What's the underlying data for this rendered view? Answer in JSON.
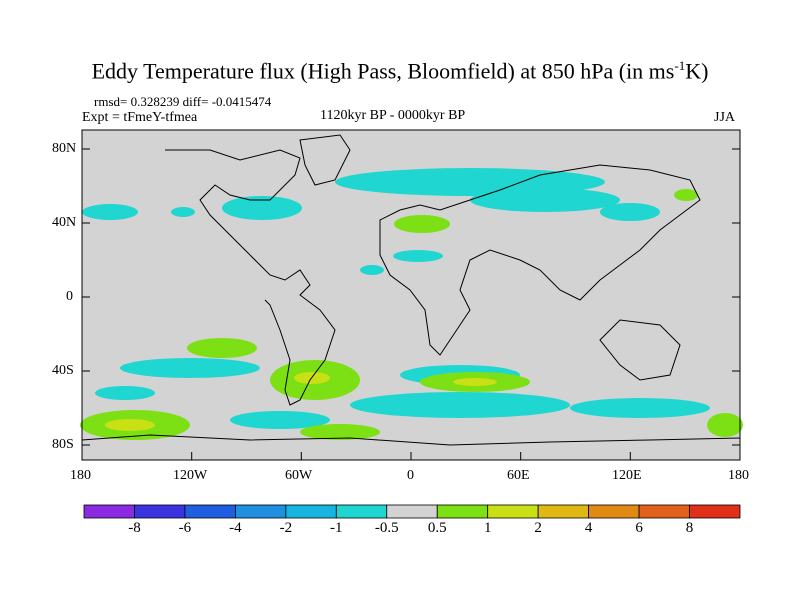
{
  "title": {
    "text": "Eddy Temperature flux (High Pass, Bloomfield) at 850 hPa (in ms",
    "sup": "-1",
    "tail": "K)"
  },
  "stats": {
    "rmsd_diff": "rmsd= 0.328239 diff= -0.0415474",
    "expt": "Expt = tFmeY-tfmea",
    "period": "1120kyr BP - 0000kyr BP",
    "season": "JJA"
  },
  "axes": {
    "lat_labels": [
      "80N",
      "40N",
      "0",
      "40S",
      "80S"
    ],
    "lon_labels": [
      "180",
      "120W",
      "60W",
      "0",
      "60E",
      "120E",
      "180"
    ]
  },
  "colorbar": {
    "labels": [
      "-8",
      "-6",
      "-4",
      "-2",
      "-1",
      "-0.5",
      "0.5",
      "1",
      "2",
      "4",
      "6",
      "8"
    ],
    "colors": [
      "#8a2be2",
      "#3c33e0",
      "#1f5fdf",
      "#1f8fe0",
      "#16b5e0",
      "#1fd6d0",
      "#d3d3d3",
      "#7de014",
      "#c8e014",
      "#e0b814",
      "#e08a14",
      "#e0601c",
      "#e0301a"
    ]
  },
  "colors": {
    "ocean_land": "#d3d3d3",
    "negative_anomaly": "#1fd6d0",
    "positive_anomaly": "#7de014",
    "strong_positive": "#c8e014"
  }
}
